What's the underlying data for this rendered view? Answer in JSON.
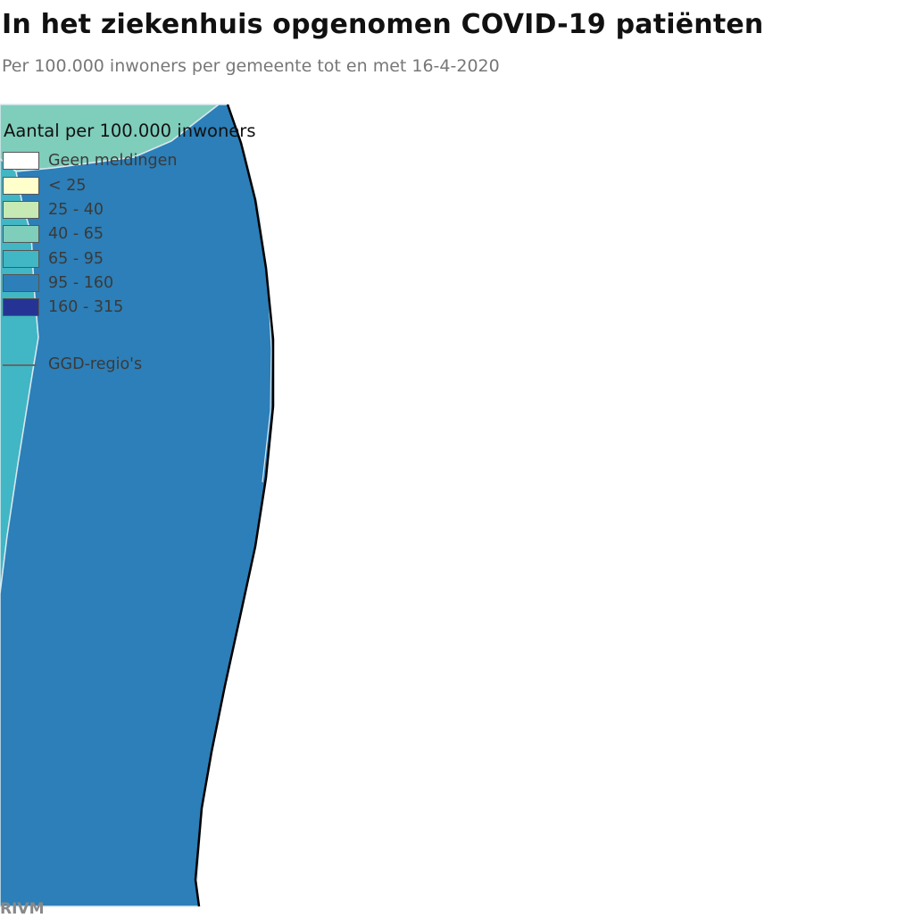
{
  "title": "In het ziekenhuis opgenomen COVID-19 patiënten",
  "subtitle": "Per 100.000 inwoners per gemeente tot en met 16-4-2020",
  "legend": {
    "title": "Aantal per 100.000 inwoners",
    "items": [
      {
        "label": "Geen meldingen",
        "color": "#ffffff"
      },
      {
        "label": "< 25",
        "color": "#ffffcc"
      },
      {
        "label": "25 - 40",
        "color": "#c7e9b4"
      },
      {
        "label": "40 - 65",
        "color": "#7fcdbb"
      },
      {
        "label": "65 - 95",
        "color": "#41b6c4"
      },
      {
        "label": "95 - 160",
        "color": "#2c7fb8"
      },
      {
        "label": "160 - 315",
        "color": "#253494"
      }
    ],
    "region_line_label": "GGD-regio's"
  },
  "map": {
    "colors": {
      "region_top": "#7fcdbb",
      "region_left": "#41b6c4",
      "region_main": "#2c7fb8",
      "border": "#000000",
      "inner_border": "#d9e8ee"
    }
  },
  "source": "RIVM"
}
